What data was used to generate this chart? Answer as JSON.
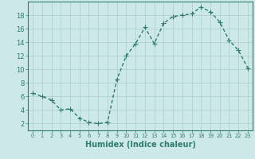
{
  "x": [
    0,
    1,
    2,
    3,
    4,
    5,
    6,
    7,
    8,
    9,
    10,
    11,
    12,
    13,
    14,
    15,
    16,
    17,
    18,
    19,
    20,
    21,
    22,
    23
  ],
  "y": [
    6.5,
    6.0,
    5.5,
    4.0,
    4.2,
    2.8,
    2.2,
    2.0,
    2.2,
    8.5,
    12.0,
    13.8,
    16.2,
    13.8,
    16.8,
    17.8,
    18.0,
    18.2,
    19.2,
    18.5,
    17.0,
    14.3,
    12.8,
    10.2
  ],
  "line_color": "#2e7d6e",
  "markersize": 2.0,
  "linewidth": 1.0,
  "bg_color": "#cce8e8",
  "grid_color": "#aacccc",
  "xlabel": "Humidex (Indice chaleur)",
  "ylim": [
    1,
    20
  ],
  "xlim": [
    -0.5,
    23.5
  ],
  "yticks": [
    2,
    4,
    6,
    8,
    10,
    12,
    14,
    16,
    18
  ],
  "xticks": [
    0,
    1,
    2,
    3,
    4,
    5,
    6,
    7,
    8,
    9,
    10,
    11,
    12,
    13,
    14,
    15,
    16,
    17,
    18,
    19,
    20,
    21,
    22,
    23
  ],
  "tick_color": "#2e7d6e",
  "label_color": "#2e7d6e",
  "xlabel_fontsize": 7.0,
  "ytick_fontsize": 6.0,
  "xtick_fontsize": 4.8
}
